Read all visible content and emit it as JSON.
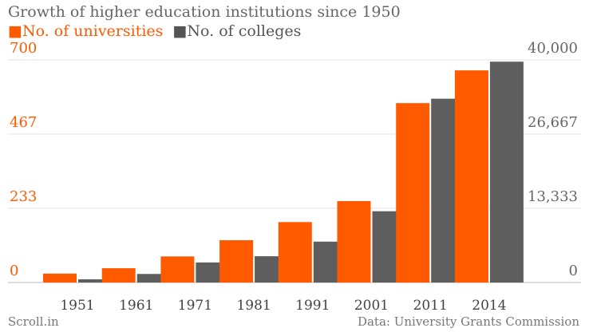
{
  "chart_data": {
    "type": "bar",
    "title": "Growth of higher education institutions since 1950",
    "categories": [
      "1951",
      "1961",
      "1971",
      "1981",
      "1991",
      "2001",
      "2011",
      "2014"
    ],
    "series": [
      {
        "name": "No. of universities",
        "values": [
          28,
          45,
          82,
          133,
          190,
          256,
          564,
          667
        ],
        "axis": "left",
        "color": "#ff5a00"
      },
      {
        "name": "No. of colleges",
        "values": [
          578,
          1542,
          3604,
          4722,
          7346,
          12806,
          33023,
          39671
        ],
        "axis": "right",
        "color": "#5e5e5e"
      }
    ],
    "left_axis": {
      "ticks": [
        "0",
        "233",
        "467",
        "700"
      ],
      "ylim": [
        0,
        700
      ],
      "color": "#ff5a00"
    },
    "right_axis": {
      "ticks": [
        "0",
        "13,333",
        "26,667",
        "40,000"
      ],
      "ylim": [
        0,
        40000
      ],
      "color": "#666666"
    },
    "grid": true,
    "legend_position": "top-left"
  },
  "title": "Growth of higher education institutions since 1950",
  "legend": {
    "swatch": "■",
    "universities": "No. of universities",
    "colleges": "No. of colleges"
  },
  "footer": {
    "source_brand": "Scroll.in",
    "credit": "Data: University Grants Commission"
  }
}
